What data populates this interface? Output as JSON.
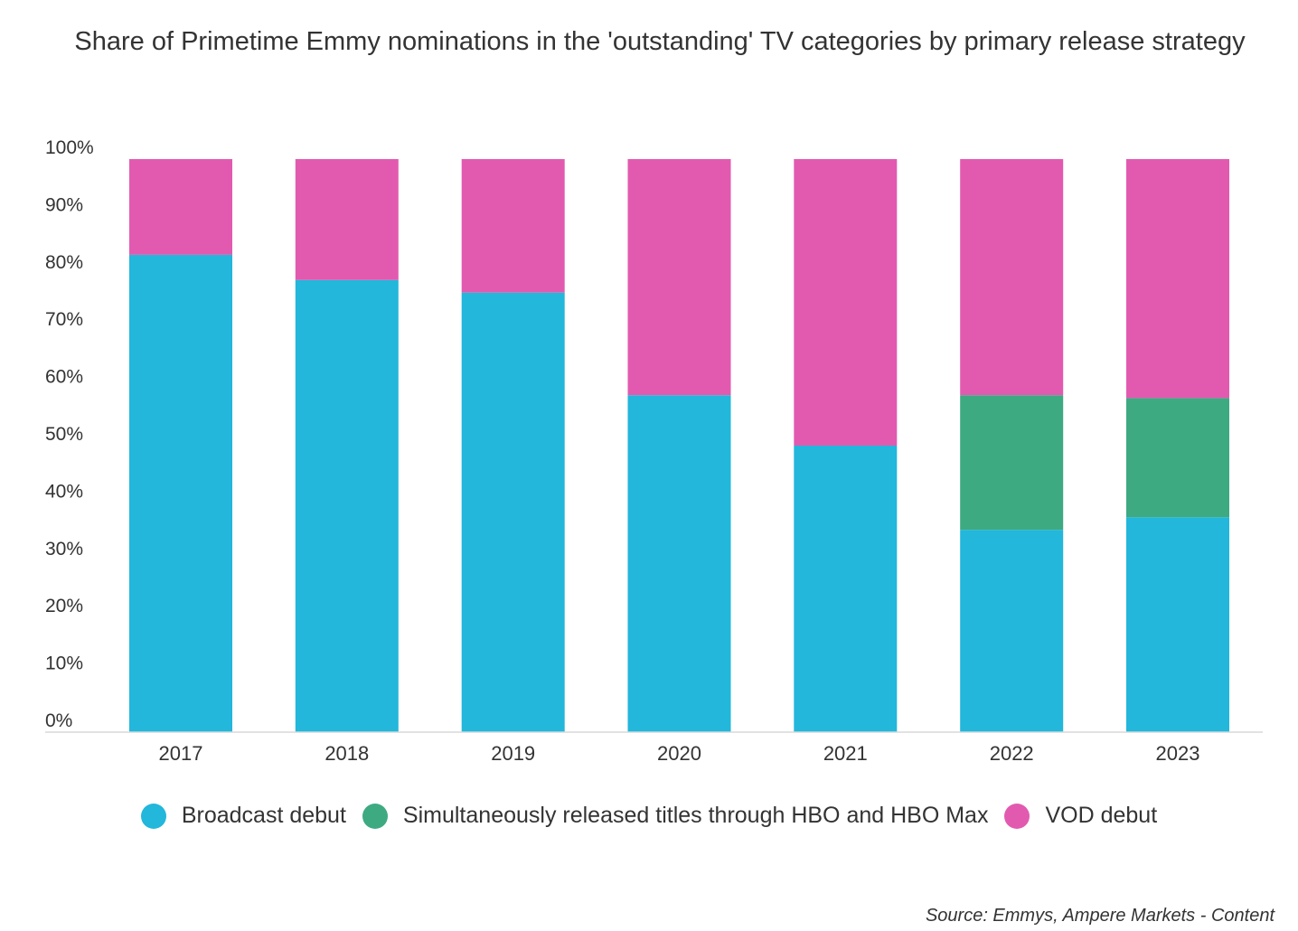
{
  "title": "Share of Primetime Emmy nominations in the 'outstanding' TV categories by primary release strategy",
  "source": "Source: Emmys, Ampere Markets - Content",
  "chart_data": {
    "type": "bar",
    "stacked": true,
    "title": "Share of Primetime Emmy nominations in the 'outstanding' TV categories by primary release strategy",
    "xlabel": "",
    "ylabel": "",
    "ylim": [
      0,
      100
    ],
    "yticks": [
      0,
      10,
      20,
      30,
      40,
      50,
      60,
      70,
      80,
      90,
      100
    ],
    "ytick_labels": [
      "0%",
      "10%",
      "20%",
      "30%",
      "40%",
      "50%",
      "60%",
      "70%",
      "80%",
      "90%",
      "100%"
    ],
    "categories": [
      "2017",
      "2018",
      "2019",
      "2020",
      "2021",
      "2022",
      "2023"
    ],
    "series": [
      {
        "name": "Broadcast debut",
        "color": "#22b7db",
        "values": [
          83.3,
          78.9,
          76.7,
          58.8,
          50.0,
          35.3,
          37.5
        ]
      },
      {
        "name": "Simultaneously released titles through HBO and HBO Max",
        "color": "#3daa82",
        "values": [
          0,
          0,
          0,
          0,
          0,
          23.5,
          20.8
        ]
      },
      {
        "name": "VOD debut",
        "color": "#e25ab0",
        "values": [
          16.7,
          21.1,
          23.3,
          41.2,
          50.0,
          41.2,
          41.7
        ]
      }
    ],
    "grid": false,
    "legend_position": "bottom"
  }
}
